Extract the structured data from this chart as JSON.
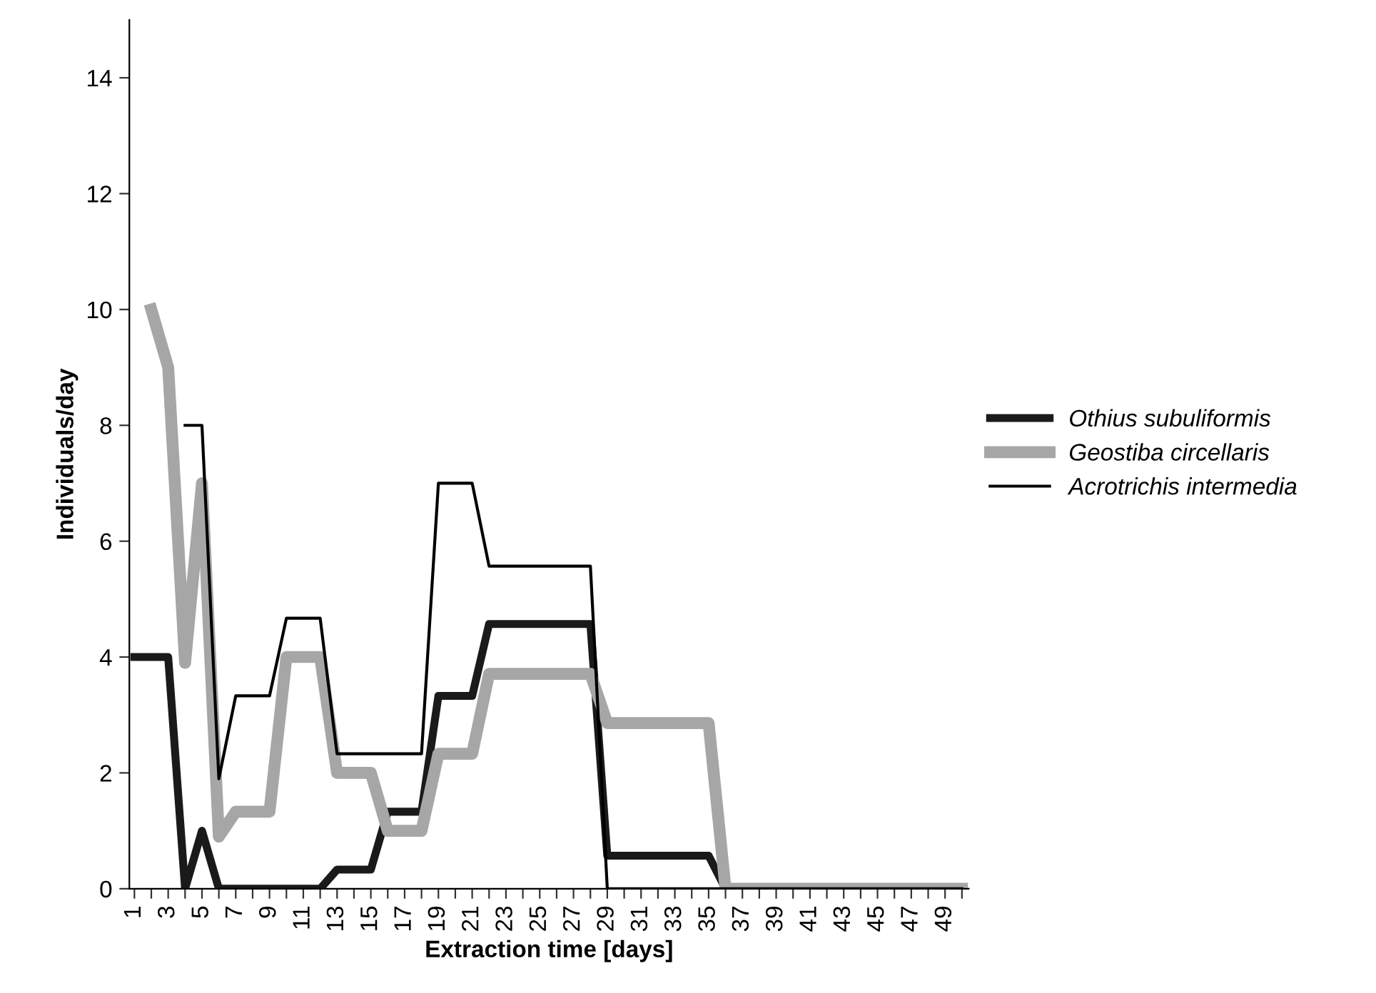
{
  "chart_data": {
    "type": "line",
    "xlabel": "Extraction time [days]",
    "ylabel": "Individuals/day",
    "categories": [
      "1",
      null,
      "3",
      null,
      "5",
      null,
      "7",
      null,
      "9",
      null,
      "11",
      null,
      "13",
      null,
      "15",
      null,
      "17",
      null,
      "19",
      null,
      "21",
      null,
      "23",
      null,
      "25",
      null,
      "27",
      null,
      "29",
      null,
      "31",
      null,
      "33",
      null,
      "35",
      null,
      "37",
      null,
      "39",
      null,
      "41",
      null,
      "43",
      null,
      "45",
      null,
      "47",
      null,
      "49",
      null
    ],
    "ylim": [
      0,
      15
    ],
    "yticks": [
      0,
      2,
      4,
      6,
      8,
      10,
      12,
      14
    ],
    "grid": false,
    "legend": "right",
    "marker": "none",
    "line_style": "solid",
    "series": [
      {
        "name": "Othius subuliformis",
        "color": "#1a1a1a",
        "values": [
          4,
          4,
          4,
          0,
          1,
          0,
          0,
          0,
          0,
          0,
          0,
          0,
          0.33,
          0.33,
          0.33,
          1.33,
          1.33,
          1.33,
          3.33,
          3.33,
          3.33,
          4.57,
          4.57,
          4.57,
          4.57,
          4.57,
          4.57,
          4.57,
          0.57,
          0.57,
          0.57,
          0.57,
          0.57,
          0.57,
          0.57,
          0,
          0,
          0,
          0,
          0,
          0,
          0,
          0,
          0,
          0,
          0,
          0,
          0,
          0,
          0
        ]
      },
      {
        "name": "Geostiba circellaris",
        "color": "#a6a6a6",
        "values": [
          null,
          10,
          9,
          3.9,
          7,
          0.9,
          1.33,
          1.33,
          1.33,
          4,
          4,
          4,
          2,
          2,
          2,
          1,
          1,
          1,
          2.33,
          2.33,
          2.33,
          3.71,
          3.71,
          3.71,
          3.71,
          3.71,
          3.71,
          3.71,
          2.86,
          2.86,
          2.86,
          2.86,
          2.86,
          2.86,
          2.86,
          0,
          0,
          0,
          0,
          0,
          0,
          0,
          0,
          0,
          0,
          0,
          0,
          0,
          0,
          0
        ]
      },
      {
        "name": "Acrotrichis intermedia",
        "color": "#000000",
        "values": [
          null,
          null,
          null,
          8,
          8,
          1.9,
          3.33,
          3.33,
          3.33,
          4.67,
          4.67,
          4.67,
          2.33,
          2.33,
          2.33,
          2.33,
          2.33,
          2.33,
          7,
          7,
          7,
          5.57,
          5.57,
          5.57,
          5.57,
          5.57,
          5.57,
          5.57,
          0,
          0,
          0,
          0,
          0,
          0,
          0,
          0,
          0,
          0,
          0,
          0,
          0,
          0,
          0,
          0,
          0,
          0,
          0,
          0,
          0,
          0
        ]
      }
    ]
  }
}
